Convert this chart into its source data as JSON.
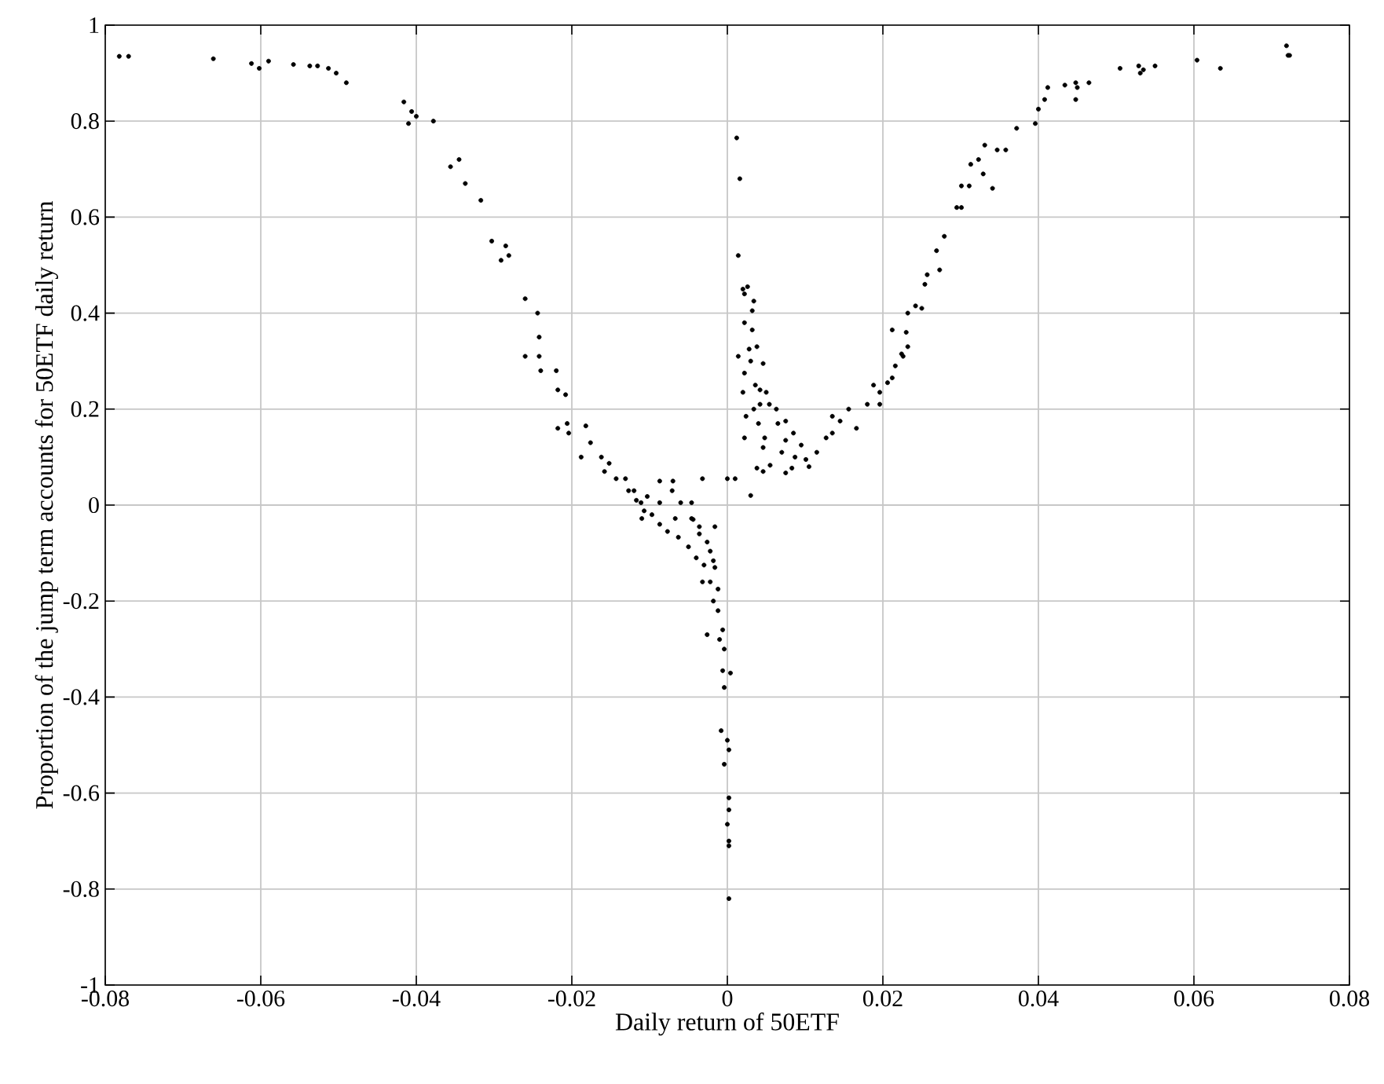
{
  "chart_data": {
    "type": "scatter",
    "xlabel": "Daily return of 50ETF",
    "ylabel": "Proportion of the  jump term accounts for 50ETF daily return",
    "xlim": [
      -0.08,
      0.08
    ],
    "ylim": [
      -1,
      1
    ],
    "xticks": [
      -0.08,
      -0.06,
      -0.04,
      -0.02,
      0,
      0.02,
      0.04,
      0.06,
      0.08
    ],
    "yticks": [
      -1,
      -0.8,
      -0.6,
      -0.4,
      -0.2,
      0,
      0.2,
      0.4,
      0.6,
      0.8,
      1
    ],
    "grid": true,
    "marker": "circle",
    "series": [
      {
        "color": "#000000",
        "x": [
          -0.0782,
          -0.077,
          -0.0661,
          -0.0612,
          -0.0602,
          -0.059,
          -0.0558,
          -0.0537,
          -0.0527,
          -0.0513,
          -0.0503,
          -0.049,
          -0.0416,
          -0.041,
          -0.0406,
          -0.04,
          -0.0378,
          -0.0356,
          -0.0345,
          -0.0337,
          -0.0317,
          -0.0303,
          -0.0291,
          -0.0285,
          -0.0281,
          -0.026,
          -0.0244,
          -0.0242,
          -0.026,
          -0.0242,
          -0.022,
          -0.024,
          -0.0218,
          -0.0208,
          -0.0206,
          -0.0218,
          -0.0204,
          -0.0182,
          -0.0188,
          -0.0176,
          -0.0162,
          -0.0158,
          -0.0152,
          -0.0143,
          -0.0131,
          -0.0127,
          -0.0111,
          -0.0103,
          -0.0087,
          -0.0071,
          -0.006,
          -0.0046,
          -0.0036,
          -0.0016,
          -0.0032,
          -0.0087,
          -0.007,
          -0.011,
          -0.0087,
          -0.0067,
          -0.0044,
          -0.0036,
          -0.0026,
          -0.0022,
          -0.0018,
          -0.0016,
          -0.0022,
          -0.0012,
          -0.0018,
          -0.0012,
          -0.0026,
          -0.0006,
          -0.001,
          -0.0004,
          -0.0006,
          0.0004,
          -0.0004,
          -0.0008,
          0,
          0.0002,
          -0.0004,
          0.0002,
          0.0002,
          0,
          0.0002,
          0.0002,
          0.0002,
          -0.012,
          -0.0117,
          -0.0107,
          -0.0097,
          -0.0077,
          -0.0063,
          -0.005,
          -0.004,
          -0.003,
          -0.0032,
          -0.0046,
          0,
          0.0012,
          0.0016,
          0.0014,
          0.002,
          0.0026,
          0.0022,
          0.0034,
          0.0032,
          0.0022,
          0.0032,
          0.0028,
          0.0038,
          0.0014,
          0.003,
          0.0046,
          0.0022,
          0.0036,
          0.0042,
          0.002,
          0.005,
          0.0034,
          0.0042,
          0.0054,
          0.0024,
          0.004,
          0.0063,
          0.0048,
          0.0022,
          0.0046,
          0.0065,
          0.0075,
          0.0075,
          0.0085,
          0.0095,
          0.007,
          0.0087,
          0.0101,
          0.0083,
          0.0115,
          0.0127,
          0.0135,
          0.0135,
          0.0145,
          0.0156,
          0.0166,
          0.018,
          0.0196,
          0.0188,
          0.0206,
          0.0216,
          0.0226,
          0.0232,
          0.0212,
          0.0232,
          0.025,
          0.0257,
          0.0273,
          0.0055,
          0.0046,
          0.0038,
          0.001,
          0.003,
          0.0075,
          0.0105,
          0.0196,
          0.0212,
          0.0224,
          0.023,
          0.0242,
          0.0254,
          0.0269,
          0.0279,
          0.0295,
          0.0301,
          0.0301,
          0.0311,
          0.0313,
          0.0323,
          0.0329,
          0.0331,
          0.0347,
          0.0341,
          0.0358,
          0.0372,
          0.0396,
          0.04,
          0.0408,
          0.0412,
          0.0434,
          0.0448,
          0.0448,
          0.045,
          0.0465,
          0.0505,
          0.0529,
          0.0531,
          0.0535,
          0.055,
          0.0604,
          0.0634,
          0.0719,
          0.0721,
          0.0723
        ],
        "values": [
          0.935,
          0.935,
          0.93,
          0.92,
          0.91,
          0.925,
          0.918,
          0.915,
          0.915,
          0.91,
          0.9,
          0.88,
          0.84,
          0.795,
          0.82,
          0.81,
          0.8,
          0.705,
          0.72,
          0.67,
          0.635,
          0.55,
          0.51,
          0.54,
          0.52,
          0.43,
          0.4,
          0.35,
          0.31,
          0.31,
          0.28,
          0.28,
          0.24,
          0.23,
          0.17,
          0.16,
          0.15,
          0.165,
          0.1,
          0.13,
          0.1,
          0.07,
          0.087,
          0.055,
          0.055,
          0.03,
          0.005,
          0.018,
          0.005,
          0.03,
          0.005,
          -0.028,
          -0.045,
          -0.045,
          0.055,
          0.05,
          0.05,
          -0.028,
          -0.04,
          -0.028,
          -0.03,
          -0.06,
          -0.077,
          -0.096,
          -0.116,
          -0.13,
          -0.16,
          -0.175,
          -0.2,
          -0.22,
          -0.27,
          -0.26,
          -0.28,
          -0.3,
          -0.345,
          -0.35,
          -0.38,
          -0.47,
          -0.49,
          -0.51,
          -0.54,
          -0.61,
          -0.635,
          -0.665,
          -0.7,
          -0.71,
          -0.82,
          0.03,
          0.01,
          -0.012,
          -0.02,
          -0.055,
          -0.067,
          -0.087,
          -0.11,
          -0.125,
          -0.16,
          0.005,
          0.055,
          0.765,
          0.68,
          0.52,
          0.45,
          0.455,
          0.44,
          0.425,
          0.405,
          0.38,
          0.365,
          0.325,
          0.33,
          0.31,
          0.3,
          0.295,
          0.275,
          0.25,
          0.24,
          0.235,
          0.235,
          0.2,
          0.21,
          0.21,
          0.185,
          0.17,
          0.2,
          0.14,
          0.14,
          0.12,
          0.17,
          0.175,
          0.135,
          0.15,
          0.125,
          0.11,
          0.1,
          0.095,
          0.077,
          0.11,
          0.14,
          0.185,
          0.15,
          0.175,
          0.2,
          0.16,
          0.21,
          0.235,
          0.25,
          0.255,
          0.29,
          0.31,
          0.33,
          0.365,
          0.4,
          0.41,
          0.48,
          0.49,
          0.083,
          0.07,
          0.077,
          0.055,
          0.02,
          0.067,
          0.08,
          0.21,
          0.265,
          0.315,
          0.36,
          0.415,
          0.46,
          0.53,
          0.56,
          0.62,
          0.62,
          0.665,
          0.665,
          0.71,
          0.72,
          0.69,
          0.75,
          0.74,
          0.66,
          0.74,
          0.785,
          0.795,
          0.825,
          0.845,
          0.87,
          0.875,
          0.88,
          0.845,
          0.87,
          0.88,
          0.91,
          0.915,
          0.9,
          0.907,
          0.915,
          0.927,
          0.91,
          0.957,
          0.937,
          0.937
        ]
      }
    ]
  }
}
